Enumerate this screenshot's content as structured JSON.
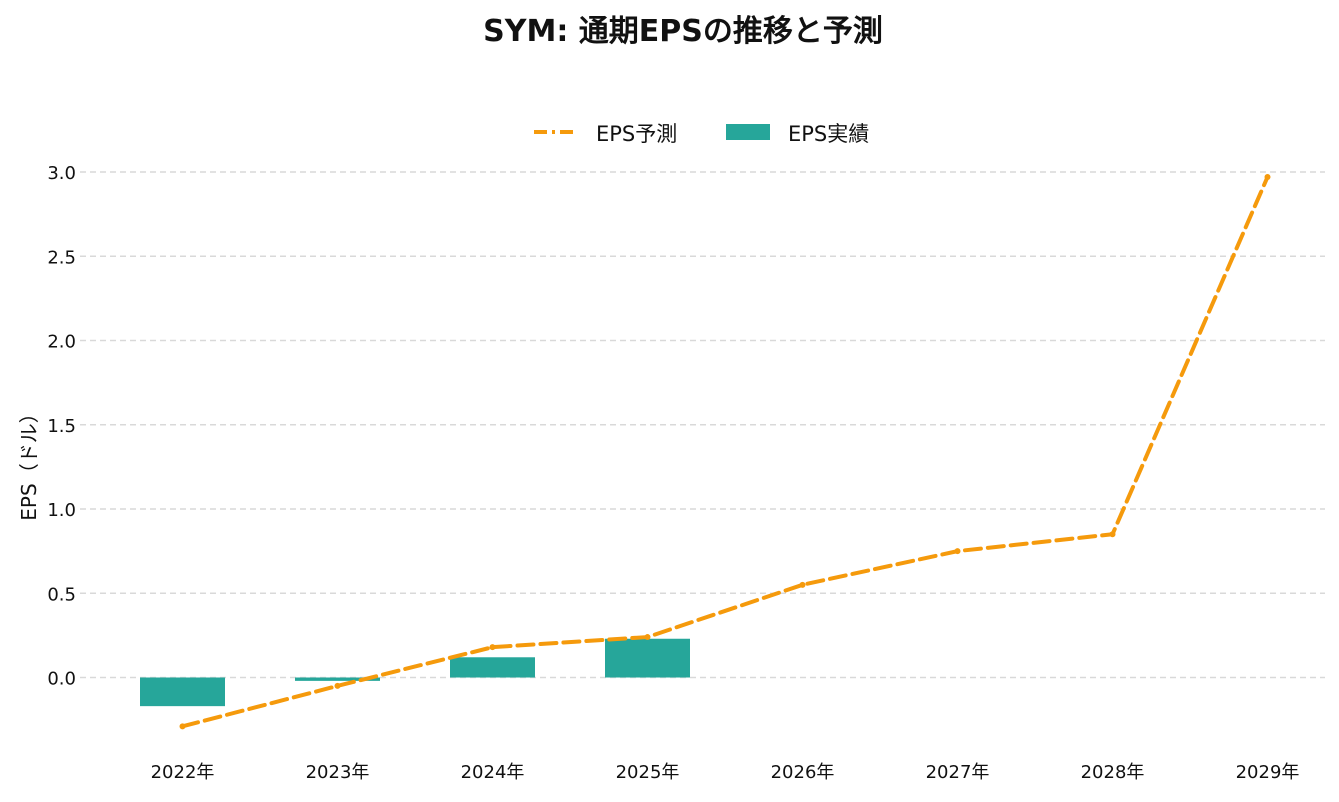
{
  "chart_data": {
    "type": "bar",
    "title": "SYM: 通期EPSの推移と予測",
    "ylabel": "EPS（ドル）",
    "xlabel": "",
    "categories": [
      "2022年",
      "2023年",
      "2024年",
      "2025年",
      "2026年",
      "2027年",
      "2028年",
      "2029年"
    ],
    "y_ticks": [
      "3.0",
      "2.5",
      "2.0",
      "1.5",
      "1.0",
      "0.5",
      "0.0"
    ],
    "ylim": [
      -0.35,
      3.0
    ],
    "grid": true,
    "legend_position": "top-center",
    "series": [
      {
        "name": "EPS予測",
        "kind": "line",
        "style": "dashed",
        "color": "#F59A0C",
        "values": [
          -0.29,
          -0.05,
          0.18,
          0.24,
          0.55,
          0.75,
          0.85,
          2.97
        ]
      },
      {
        "name": "EPS実績",
        "kind": "bar",
        "color": "#26A69A",
        "values": [
          -0.17,
          -0.02,
          0.12,
          0.23,
          null,
          null,
          null,
          null
        ]
      }
    ]
  }
}
